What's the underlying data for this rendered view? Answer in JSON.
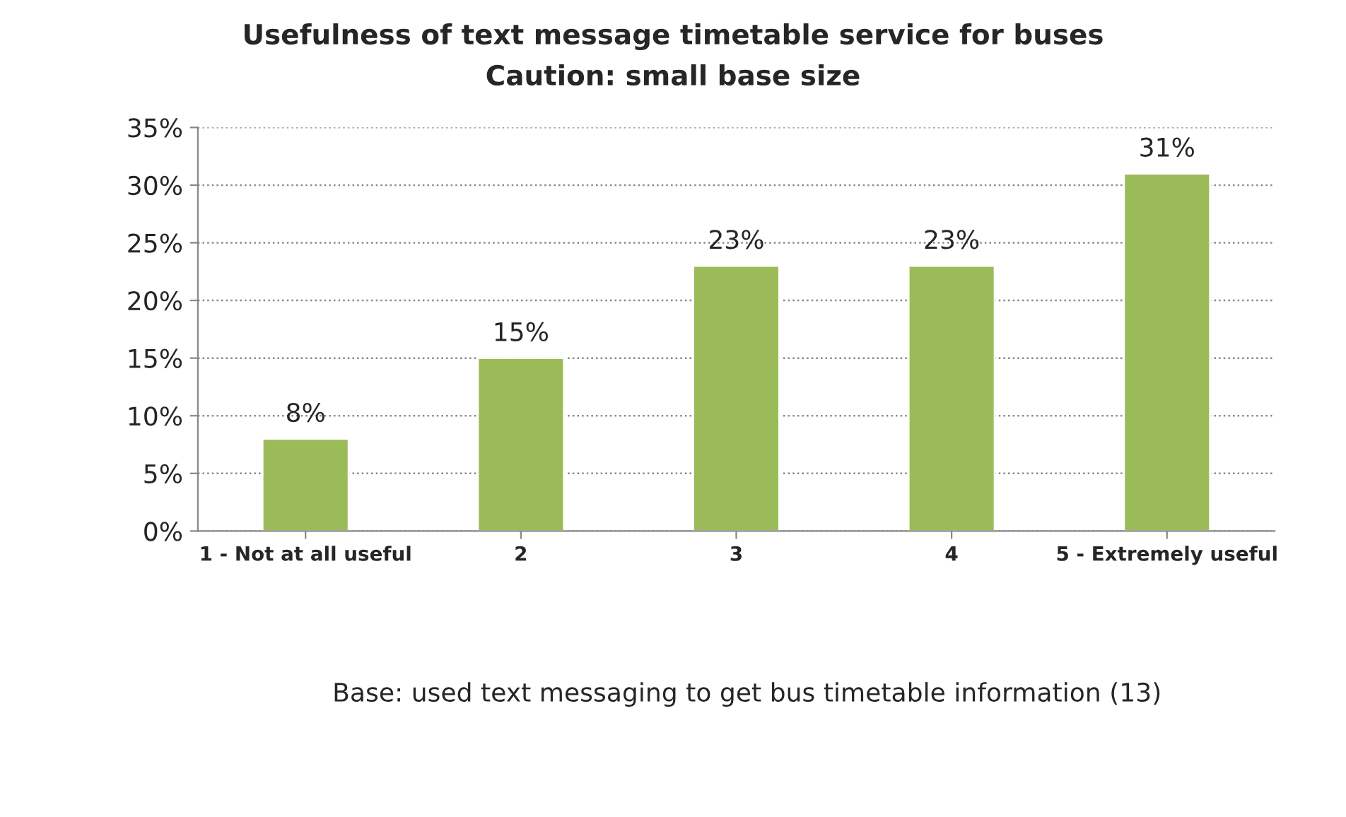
{
  "chart_data": {
    "type": "bar",
    "title": "Usefulness of text message timetable service for buses",
    "subtitle": "Caution: small base size",
    "categories": [
      "1 - Not at all useful",
      "2",
      "3",
      "4",
      "5 - Extremely useful"
    ],
    "values": [
      8,
      15,
      23,
      23,
      31
    ],
    "color": "#9bbb59",
    "value_labels": [
      "8%",
      "15%",
      "23%",
      "23%",
      "31%"
    ],
    "ylim": [
      0,
      35
    ],
    "yticks": [
      {
        "value": 0,
        "label": "0%"
      },
      {
        "value": 5,
        "label": "5%"
      },
      {
        "value": 10,
        "label": "10%"
      },
      {
        "value": 15,
        "label": "15%"
      },
      {
        "value": 20,
        "label": "20%"
      },
      {
        "value": 25,
        "label": "25%"
      },
      {
        "value": 30,
        "label": "30%"
      },
      {
        "value": 35,
        "label": "35%"
      }
    ],
    "grid": "y",
    "annotations": [
      "Base: used text messaging to get bus timetable information (13)"
    ]
  }
}
